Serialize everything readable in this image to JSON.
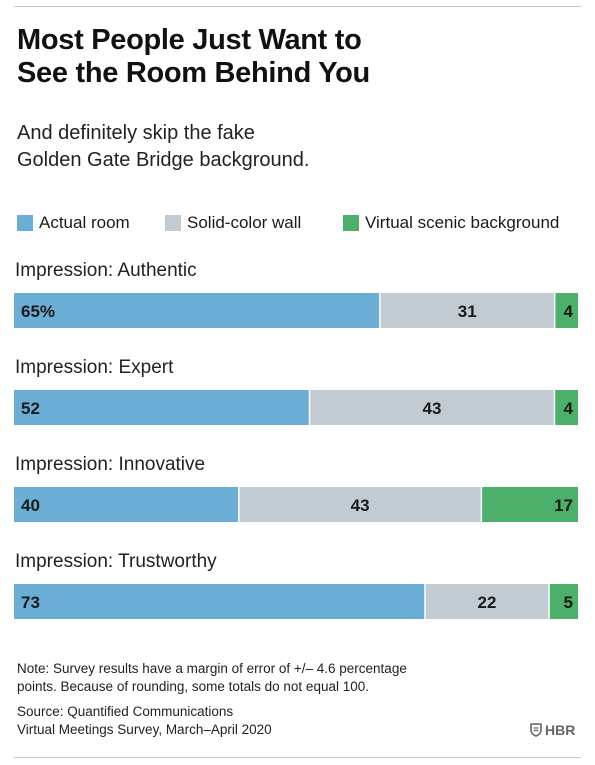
{
  "title_line1": "Most People Just Want to",
  "title_line2": "See the Room Behind You",
  "subtitle_line1": "And definitely skip the fake",
  "subtitle_line2": "Golden Gate Bridge background.",
  "note_line1": "Note: Survey results have a margin of error of +/– 4.6 percentage",
  "note_line2": "points. Because of rounding, some totals do not equal 100.",
  "source_line1": "Source: Quantified Communications",
  "source_line2": "Virtual Meetings Survey, March–April 2020",
  "logo_text": "HBR",
  "logo_icon": "shield-icon",
  "colors": {
    "actual_room": "#6aaed6",
    "solid_wall": "#c3cbd2",
    "virtual_scenic": "#4caf6a"
  },
  "chart_data": {
    "type": "bar",
    "orientation": "horizontal",
    "stacked": true,
    "title": "Most People Just Want to See the Room Behind You",
    "subtitle": "And definitely skip the fake Golden Gate Bridge background.",
    "categories": [
      "Impression: Authentic",
      "Impression: Expert",
      "Impression: Innovative",
      "Impression: Trustworthy"
    ],
    "series": [
      {
        "name": "Actual room",
        "values": [
          65,
          52,
          40,
          73
        ]
      },
      {
        "name": "Solid-color wall",
        "values": [
          31,
          43,
          43,
          22
        ]
      },
      {
        "name": "Virtual scenic background",
        "values": [
          4,
          4,
          17,
          5
        ]
      }
    ],
    "value_labels": [
      [
        "65%",
        "31",
        "4"
      ],
      [
        "52",
        "43",
        "4"
      ],
      [
        "40",
        "43",
        "17"
      ],
      [
        "73",
        "22",
        "5"
      ]
    ],
    "xlim": [
      0,
      100
    ],
    "grid": false,
    "legend": "top"
  }
}
